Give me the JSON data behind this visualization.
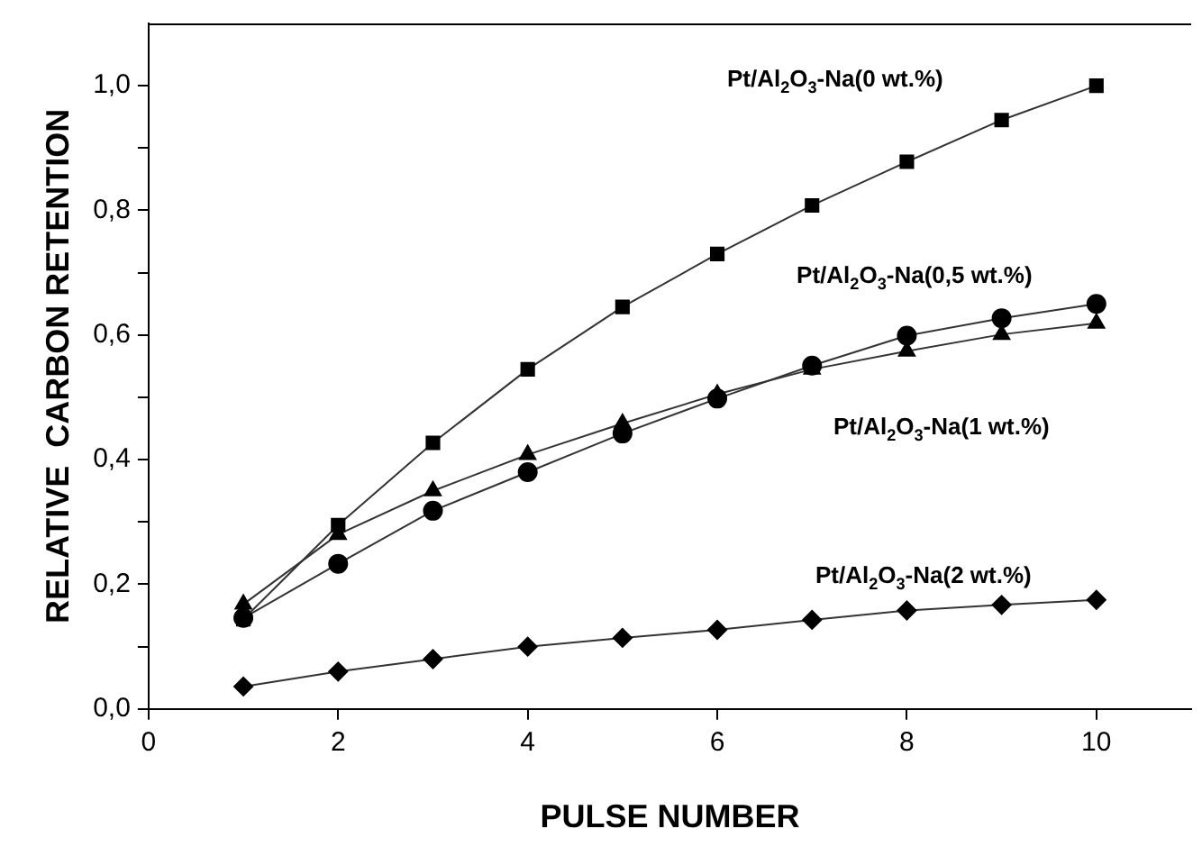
{
  "chart_data": {
    "type": "line",
    "xlabel": "PULSE NUMBER",
    "ylabel": "RELATIVE  CARBON RETENTION",
    "x": [
      1,
      2,
      3,
      4,
      5,
      6,
      7,
      8,
      9,
      10
    ],
    "xlim": [
      0,
      11
    ],
    "xticks": [
      0,
      2,
      4,
      6,
      8,
      10
    ],
    "ylim": [
      0,
      1.1
    ],
    "yticks": [
      {
        "value": 0,
        "label": "0,0"
      },
      {
        "value": 0.1,
        "label": null
      },
      {
        "value": 0.2,
        "label": "0,2"
      },
      {
        "value": 0.3,
        "label": null
      },
      {
        "value": 0.4,
        "label": "0,4"
      },
      {
        "value": 0.5,
        "label": null
      },
      {
        "value": 0.6,
        "label": "0,6"
      },
      {
        "value": 0.7,
        "label": null
      },
      {
        "value": 0.8,
        "label": "0,8"
      },
      {
        "value": 0.9,
        "label": null
      },
      {
        "value": 1.0,
        "label": "1,0"
      }
    ],
    "grid": false,
    "legend": false,
    "line_style": "solid",
    "series": [
      {
        "name": "Pt/Al$_{2}$O$_{3}$-Na(0 wt.%)",
        "color": "#000000",
        "marker": "square",
        "values": [
          0.144,
          0.295,
          0.427,
          0.545,
          0.645,
          0.73,
          0.808,
          0.878,
          0.945,
          1.0
        ]
      },
      {
        "name": "Pt/Al$_{2}$O$_{3}$-Na(0,5 wt.%)",
        "color": "#000000",
        "marker": "circle",
        "values": [
          0.146,
          0.233,
          0.318,
          0.38,
          0.442,
          0.498,
          0.551,
          0.599,
          0.627,
          0.65
        ]
      },
      {
        "name": "Pt/Al$_{2}$O$_{3}$-Na(1 wt.%)",
        "color": "#000000",
        "marker": "triangle",
        "values": [
          0.168,
          0.28,
          0.35,
          0.408,
          0.458,
          0.505,
          0.545,
          0.574,
          0.601,
          0.619
        ]
      },
      {
        "name": "Pt/Al$_{2}$O$_{3}$-Na(2 wt.%)",
        "color": "#000000",
        "marker": "diamond",
        "values": [
          0.036,
          0.06,
          0.08,
          0.1,
          0.114,
          0.127,
          0.143,
          0.158,
          0.167,
          0.175
        ]
      }
    ]
  }
}
